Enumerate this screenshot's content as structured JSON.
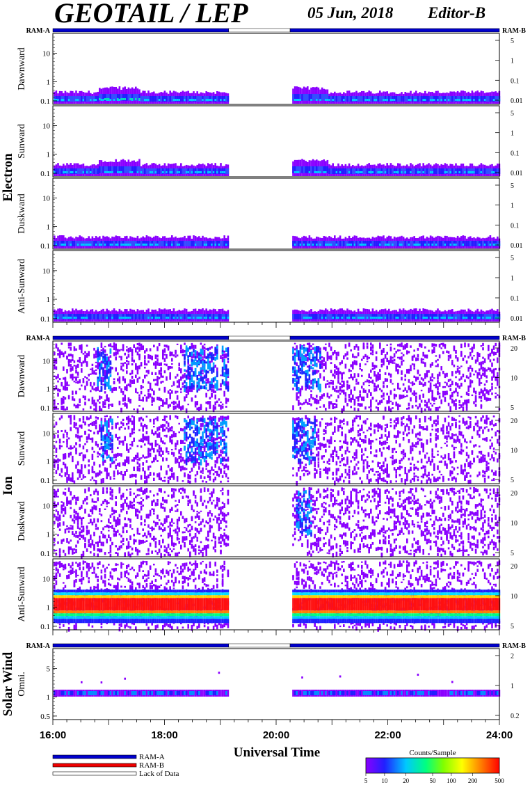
{
  "header": {
    "instrument": "GEOTAIL / LEP",
    "date": "05 Jun, 2018",
    "editor": "Editor-B"
  },
  "chart_data": {
    "type": "heatmap",
    "xlabel": "Universal Time",
    "x_ticks": [
      "16:00",
      "18:00",
      "20:00",
      "22:00",
      "24:00"
    ],
    "xlim_hours": [
      16,
      24
    ],
    "data_gap_hours": [
      19.15,
      20.25
    ],
    "mode_bar": {
      "left": "RAM-A",
      "right": "RAM-B"
    },
    "groups": [
      {
        "name": "Electron",
        "panels": [
          {
            "label": "Dawnward",
            "y_ticks": [
              "10",
              "1",
              "0.1"
            ],
            "right_ticks": [
              "5",
              "1",
              "0.1",
              "0.01"
            ],
            "style": "electron"
          },
          {
            "label": "Sunward",
            "y_ticks": [
              "10",
              "1",
              "0.1"
            ],
            "right_ticks": [
              "5",
              "1",
              "0.1",
              "0.01"
            ],
            "style": "electron"
          },
          {
            "label": "Duskward",
            "y_ticks": [
              "10",
              "1",
              "0.1"
            ],
            "right_ticks": [
              "5",
              "1",
              "0.1",
              "0.01"
            ],
            "style": "electron"
          },
          {
            "label": "Anti-Sunward",
            "y_ticks": [
              "10",
              "1",
              "0.1"
            ],
            "right_ticks": [
              "5",
              "1",
              "0.1",
              "0.01"
            ],
            "style": "electron"
          }
        ]
      },
      {
        "name": "Ion",
        "panels": [
          {
            "label": "Dawnward",
            "y_ticks": [
              "10",
              "1",
              "0.1"
            ],
            "right_ticks": [
              "20",
              "10",
              "5"
            ],
            "style": "ion"
          },
          {
            "label": "Sunward",
            "y_ticks": [
              "10",
              "1",
              "0.1"
            ],
            "right_ticks": [
              "20",
              "10",
              "5"
            ],
            "style": "ion"
          },
          {
            "label": "Duskward",
            "y_ticks": [
              "10",
              "1",
              "0.1"
            ],
            "right_ticks": [
              "20",
              "10",
              "5"
            ],
            "style": "ion"
          },
          {
            "label": "Anti-Sunward",
            "y_ticks": [
              "10",
              "1",
              "0.1"
            ],
            "right_ticks": [
              "20",
              "10",
              "5"
            ],
            "style": "ion-anti"
          }
        ]
      },
      {
        "name": "Solar Wind",
        "panels": [
          {
            "label": "Omni.",
            "y_ticks": [
              "5",
              "1",
              "0.5"
            ],
            "right_ticks": [
              "2",
              "1",
              "0.2"
            ],
            "style": "solar"
          }
        ]
      }
    ],
    "legend": {
      "items": [
        {
          "label": "RAM-A",
          "color": "#0000cc"
        },
        {
          "label": "RAM-B",
          "color": "#ee0000"
        },
        {
          "label": "Lack of Data",
          "color": "#ffffff"
        }
      ]
    },
    "colorbar": {
      "title": "Counts/Sample",
      "ticks": [
        "5",
        "10",
        "20",
        "50",
        "100",
        "200",
        "500"
      ],
      "colors": [
        "#8a00ff",
        "#2020ff",
        "#00c8ff",
        "#00ff80",
        "#80ff00",
        "#ffff00",
        "#ff8000",
        "#ff0000"
      ]
    }
  }
}
